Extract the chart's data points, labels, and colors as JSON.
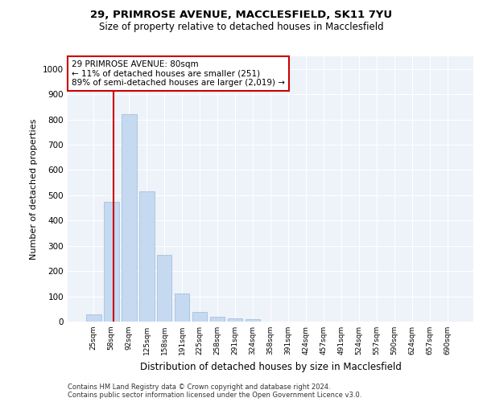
{
  "title1": "29, PRIMROSE AVENUE, MACCLESFIELD, SK11 7YU",
  "title2": "Size of property relative to detached houses in Macclesfield",
  "xlabel": "Distribution of detached houses by size in Macclesfield",
  "ylabel": "Number of detached properties",
  "footnote1": "Contains HM Land Registry data © Crown copyright and database right 2024.",
  "footnote2": "Contains public sector information licensed under the Open Government Licence v3.0.",
  "annotation_line1": "29 PRIMROSE AVENUE: 80sqm",
  "annotation_line2": "← 11% of detached houses are smaller (251)",
  "annotation_line3": "89% of semi-detached houses are larger (2,019) →",
  "bar_categories": [
    "25sqm",
    "58sqm",
    "92sqm",
    "125sqm",
    "158sqm",
    "191sqm",
    "225sqm",
    "258sqm",
    "291sqm",
    "324sqm",
    "358sqm",
    "391sqm",
    "424sqm",
    "457sqm",
    "491sqm",
    "524sqm",
    "557sqm",
    "590sqm",
    "624sqm",
    "657sqm",
    "690sqm"
  ],
  "bar_values": [
    28,
    475,
    820,
    515,
    265,
    110,
    37,
    18,
    12,
    8,
    0,
    0,
    0,
    0,
    0,
    0,
    0,
    0,
    0,
    0,
    0
  ],
  "bar_color": "#c5d9f1",
  "bar_edge_color": "#9bbad9",
  "property_line_color": "#cc0000",
  "annotation_box_color": "#cc0000",
  "background_color": "#eef2f9",
  "grid_color": "#ffffff",
  "ylim": [
    0,
    1050
  ],
  "yticks": [
    0,
    100,
    200,
    300,
    400,
    500,
    600,
    700,
    800,
    900,
    1000
  ]
}
